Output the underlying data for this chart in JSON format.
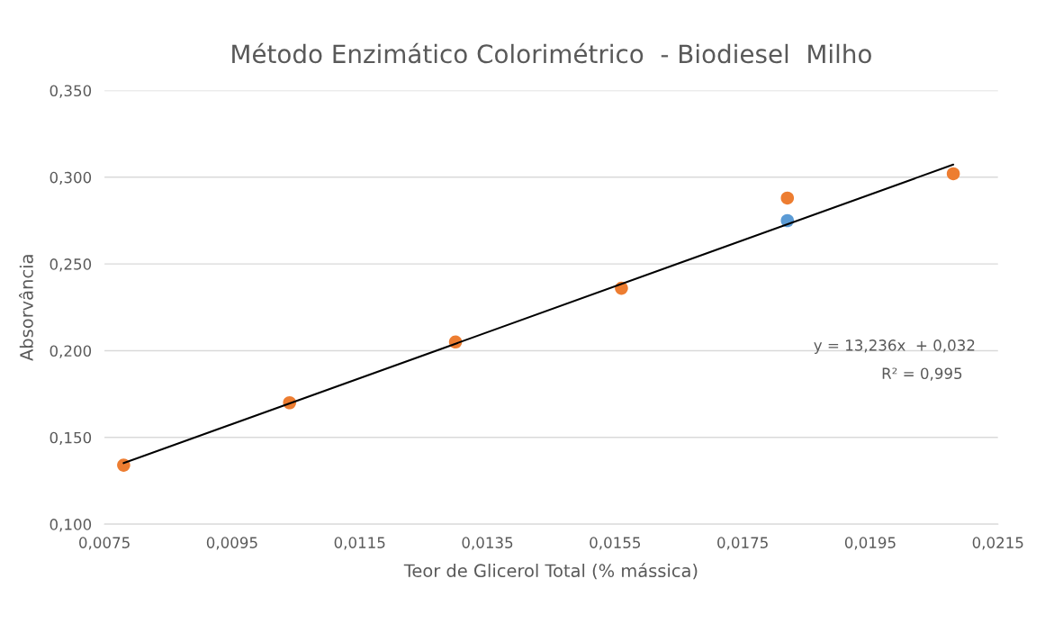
{
  "chart_data": {
    "type": "scatter",
    "title": "Método Enzimático Colorimétrico  - Biodiesel  Milho",
    "xlabel": "Teor de Glicerol Total (% mássica)",
    "ylabel": "Absorvância",
    "x": [
      0.0078,
      0.0104,
      0.013,
      0.0156,
      0.0182,
      0.0208
    ],
    "series": [
      {
        "color": "#5b9bd5",
        "values": [
          null,
          null,
          null,
          null,
          0.275,
          null
        ]
      },
      {
        "color": "#ed7d31",
        "values": [
          0.134,
          0.17,
          0.205,
          0.236,
          0.288,
          0.302
        ]
      },
      {
        "type": "line",
        "color": "#000000",
        "x": [
          0.0078,
          0.0208
        ],
        "values": [
          0.1352,
          0.3073
        ],
        "marker": "none"
      }
    ],
    "marker": "circle",
    "xlim": [
      0.0075,
      0.0215
    ],
    "xticks": [
      {
        "value": 0.0075,
        "label": "0,0075"
      },
      {
        "value": 0.0095,
        "label": "0,0095"
      },
      {
        "value": 0.0115,
        "label": "0,0115"
      },
      {
        "value": 0.0135,
        "label": "0,0135"
      },
      {
        "value": 0.0155,
        "label": "0,0155"
      },
      {
        "value": 0.0175,
        "label": "0,0175"
      },
      {
        "value": 0.0195,
        "label": "0,0195"
      },
      {
        "value": 0.0215,
        "label": "0,0215"
      }
    ],
    "ylim": [
      0.1,
      0.35
    ],
    "yticks": [
      {
        "value": 0.1,
        "label": "0,100"
      },
      {
        "value": 0.15,
        "label": "0,150"
      },
      {
        "value": 0.2,
        "label": "0,200"
      },
      {
        "value": 0.25,
        "label": "0,250"
      },
      {
        "value": 0.3,
        "label": "0,300"
      },
      {
        "value": 0.35,
        "label": "0,350"
      }
    ],
    "grid": "y",
    "annotations": [
      "y = 13,236x  + 0,032",
      "R² = 0,995"
    ]
  }
}
